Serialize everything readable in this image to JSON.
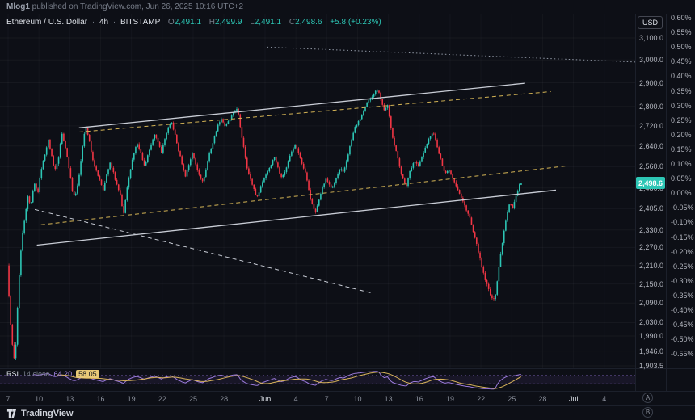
{
  "publisher": {
    "username": "Mlog1",
    "text": " published on TradingView.com, Jun 26, 2025 10:16 UTC+2"
  },
  "header": {
    "title": "Ethereum / U.S. Dollar",
    "separator": "·",
    "interval": "4h",
    "exchange": "BITSTAMP",
    "o_label": "O",
    "o": "2,491.1",
    "h_label": "H",
    "h": "2,499.9",
    "l_label": "L",
    "l": "2,491.1",
    "c_label": "C",
    "c": "2,498.6",
    "change": "+5.8 (+0.23%)"
  },
  "price_scale": {
    "currency_button": "USD",
    "current_price": 2498.6,
    "current_price_badge": "2,498.6",
    "labels": [
      {
        "price": 3100,
        "text": "3,100.0"
      },
      {
        "price": 3000,
        "text": "3,000.0"
      },
      {
        "price": 2900,
        "text": "2,900.0"
      },
      {
        "price": 2800,
        "text": "2,800.0"
      },
      {
        "price": 2720,
        "text": "2,720.0"
      },
      {
        "price": 2640,
        "text": "2,640.0"
      },
      {
        "price": 2560,
        "text": "2,560.0"
      },
      {
        "price": 2480,
        "text": "2,480.0"
      },
      {
        "price": 2405,
        "text": "2,405.0"
      },
      {
        "price": 2330,
        "text": "2,330.0"
      },
      {
        "price": 2270,
        "text": "2,270.0"
      },
      {
        "price": 2210,
        "text": "2,210.0"
      },
      {
        "price": 2150,
        "text": "2,150.0"
      },
      {
        "price": 2090,
        "text": "2,090.0"
      },
      {
        "price": 2030,
        "text": "2,030.0"
      },
      {
        "price": 1990,
        "text": "1,990.0"
      },
      {
        "price": 1946,
        "text": "1,946.0"
      },
      {
        "price": 1903.5,
        "text": "1,903.5"
      }
    ]
  },
  "percent_scale": {
    "labels": [
      "0.60%",
      "0.55%",
      "0.50%",
      "0.45%",
      "0.40%",
      "0.35%",
      "0.30%",
      "0.25%",
      "0.20%",
      "0.15%",
      "0.10%",
      "0.05%",
      "0.00%",
      "-0.05%",
      "-0.10%",
      "-0.15%",
      "-0.20%",
      "-0.25%",
      "-0.30%",
      "-0.35%",
      "-0.40%",
      "-0.45%",
      "-0.50%",
      "-0.55%"
    ]
  },
  "time_scale": {
    "labels": [
      {
        "text": "7",
        "day": 0
      },
      {
        "text": "10",
        "day": 3
      },
      {
        "text": "13",
        "day": 6
      },
      {
        "text": "16",
        "day": 9
      },
      {
        "text": "19",
        "day": 12
      },
      {
        "text": "22",
        "day": 15
      },
      {
        "text": "25",
        "day": 18
      },
      {
        "text": "28",
        "day": 21
      },
      {
        "text": "Jun",
        "day": 25,
        "month": true
      },
      {
        "text": "4",
        "day": 28
      },
      {
        "text": "7",
        "day": 31
      },
      {
        "text": "10",
        "day": 34
      },
      {
        "text": "13",
        "day": 37
      },
      {
        "text": "16",
        "day": 40
      },
      {
        "text": "19",
        "day": 43
      },
      {
        "text": "22",
        "day": 46
      },
      {
        "text": "25",
        "day": 49
      },
      {
        "text": "28",
        "day": 52
      },
      {
        "text": "Jul",
        "day": 55,
        "month": true
      },
      {
        "text": "4",
        "day": 58
      }
    ]
  },
  "rsi_pane": {
    "title": "RSI",
    "params": "14 close"
  },
  "markers": {
    "a": "A",
    "b": "B"
  },
  "footer": {
    "logo_text": "TradingView"
  },
  "colors": {
    "background": "#0d0f16",
    "up": "#2dc6b5",
    "down": "#f23645",
    "accent_teal": "#2dc6b5",
    "rsi_line": "#9c7bdc",
    "rsi_ma": "#d9b45b",
    "trendline_white": "#c9cdd6",
    "trendline_yellow": "#d4b455",
    "dotted_gray": "#8f96a3"
  },
  "chart_data": {
    "type": "candlestick",
    "title": "Ethereum / U.S. Dollar · 4h · BITSTAMP",
    "scale": "logarithmic",
    "interval_hours": 4,
    "x_unit": "days since May 7",
    "y_range": [
      1903.5,
      3100
    ],
    "last_candle": {
      "o": 2491.1,
      "h": 2499.9,
      "l": 2491.1,
      "c": 2498.6
    },
    "price_path": [
      [
        0.0,
        2210
      ],
      [
        0.25,
        2060
      ],
      [
        0.5,
        1962
      ],
      [
        0.75,
        1906
      ],
      [
        1.0,
        2075
      ],
      [
        1.25,
        2225
      ],
      [
        1.5,
        2318
      ],
      [
        1.75,
        2378
      ],
      [
        2.0,
        2448
      ],
      [
        2.3,
        2415
      ],
      [
        2.6,
        2498
      ],
      [
        3.0,
        2468
      ],
      [
        3.3,
        2548
      ],
      [
        3.6,
        2598
      ],
      [
        4.0,
        2662
      ],
      [
        4.3,
        2608
      ],
      [
        4.6,
        2542
      ],
      [
        5.0,
        2598
      ],
      [
        5.3,
        2692
      ],
      [
        5.6,
        2648
      ],
      [
        6.0,
        2558
      ],
      [
        6.3,
        2478
      ],
      [
        6.6,
        2442
      ],
      [
        7.0,
        2528
      ],
      [
        7.3,
        2628
      ],
      [
        7.6,
        2718
      ],
      [
        8.0,
        2658
      ],
      [
        8.3,
        2588
      ],
      [
        8.6,
        2552
      ],
      [
        9.0,
        2512
      ],
      [
        9.3,
        2468
      ],
      [
        9.6,
        2522
      ],
      [
        10.0,
        2572
      ],
      [
        10.3,
        2542
      ],
      [
        10.6,
        2498
      ],
      [
        11.0,
        2452
      ],
      [
        11.3,
        2378
      ],
      [
        11.6,
        2468
      ],
      [
        12.0,
        2548
      ],
      [
        12.3,
        2612
      ],
      [
        12.6,
        2652
      ],
      [
        13.0,
        2612
      ],
      [
        13.3,
        2558
      ],
      [
        13.6,
        2592
      ],
      [
        14.0,
        2642
      ],
      [
        14.3,
        2692
      ],
      [
        14.6,
        2658
      ],
      [
        15.0,
        2618
      ],
      [
        15.3,
        2662
      ],
      [
        15.6,
        2708
      ],
      [
        16.0,
        2732
      ],
      [
        16.3,
        2688
      ],
      [
        16.6,
        2632
      ],
      [
        17.0,
        2572
      ],
      [
        17.3,
        2522
      ],
      [
        17.6,
        2558
      ],
      [
        18.0,
        2612
      ],
      [
        18.3,
        2572
      ],
      [
        18.6,
        2538
      ],
      [
        19.0,
        2502
      ],
      [
        19.3,
        2542
      ],
      [
        19.6,
        2602
      ],
      [
        20.0,
        2652
      ],
      [
        20.4,
        2712
      ],
      [
        20.8,
        2752
      ],
      [
        21.2,
        2718
      ],
      [
        21.6,
        2742
      ],
      [
        22.0,
        2772
      ],
      [
        22.4,
        2796
      ],
      [
        22.7,
        2702
      ],
      [
        23.0,
        2638
      ],
      [
        23.3,
        2562
      ],
      [
        23.6,
        2518
      ],
      [
        24.0,
        2476
      ],
      [
        24.3,
        2442
      ],
      [
        24.6,
        2480
      ],
      [
        25.0,
        2518
      ],
      [
        25.5,
        2556
      ],
      [
        26.0,
        2598
      ],
      [
        26.3,
        2560
      ],
      [
        26.6,
        2522
      ],
      [
        27.0,
        2538
      ],
      [
        27.3,
        2576
      ],
      [
        27.6,
        2616
      ],
      [
        28.0,
        2646
      ],
      [
        28.3,
        2616
      ],
      [
        28.6,
        2578
      ],
      [
        29.0,
        2538
      ],
      [
        29.3,
        2480
      ],
      [
        29.6,
        2426
      ],
      [
        30.0,
        2390
      ],
      [
        30.3,
        2436
      ],
      [
        30.6,
        2476
      ],
      [
        31.0,
        2512
      ],
      [
        31.3,
        2496
      ],
      [
        31.6,
        2476
      ],
      [
        32.0,
        2516
      ],
      [
        32.4,
        2552
      ],
      [
        32.7,
        2536
      ],
      [
        33.0,
        2582
      ],
      [
        33.4,
        2648
      ],
      [
        33.8,
        2712
      ],
      [
        34.2,
        2738
      ],
      [
        34.6,
        2772
      ],
      [
        35.0,
        2812
      ],
      [
        35.4,
        2838
      ],
      [
        35.8,
        2862
      ],
      [
        36.1,
        2872
      ],
      [
        36.4,
        2818
      ],
      [
        36.7,
        2782
      ],
      [
        37.0,
        2802
      ],
      [
        37.3,
        2722
      ],
      [
        37.6,
        2652
      ],
      [
        38.0,
        2592
      ],
      [
        38.4,
        2522
      ],
      [
        38.8,
        2484
      ],
      [
        39.2,
        2548
      ],
      [
        39.6,
        2582
      ],
      [
        40.0,
        2562
      ],
      [
        40.4,
        2602
      ],
      [
        40.8,
        2648
      ],
      [
        41.2,
        2682
      ],
      [
        41.5,
        2692
      ],
      [
        41.8,
        2638
      ],
      [
        42.2,
        2582
      ],
      [
        42.6,
        2535
      ],
      [
        43.0,
        2548
      ],
      [
        43.4,
        2512
      ],
      [
        43.8,
        2478
      ],
      [
        44.2,
        2440
      ],
      [
        44.6,
        2408
      ],
      [
        45.0,
        2372
      ],
      [
        45.4,
        2312
      ],
      [
        45.8,
        2262
      ],
      [
        46.2,
        2198
      ],
      [
        46.6,
        2152
      ],
      [
        47.0,
        2118
      ],
      [
        47.4,
        2095
      ],
      [
        47.7,
        2168
      ],
      [
        48.0,
        2248
      ],
      [
        48.3,
        2318
      ],
      [
        48.6,
        2382
      ],
      [
        48.9,
        2428
      ],
      [
        49.2,
        2408
      ],
      [
        49.5,
        2452
      ],
      [
        49.9,
        2498.6
      ]
    ],
    "drawings": [
      {
        "name": "channel-top-line",
        "type": "trendline",
        "style": "solid",
        "color": "#c9cdd6",
        "width": 1.3,
        "from": [
          6.9,
          2712
        ],
        "to": [
          50.3,
          2898
        ]
      },
      {
        "name": "channel-bottom-line",
        "type": "trendline",
        "style": "solid",
        "color": "#c9cdd6",
        "width": 1.3,
        "from": [
          2.8,
          2278
        ],
        "to": [
          53.3,
          2472
        ]
      },
      {
        "name": "yellow-upper-dashed",
        "type": "trendline",
        "style": "dashed",
        "color": "#d4b455",
        "width": 1,
        "from": [
          6.9,
          2695
        ],
        "to": [
          52.8,
          2862
        ]
      },
      {
        "name": "yellow-mid-dashed",
        "type": "trendline",
        "style": "dashed",
        "color": "#d4b455",
        "width": 1,
        "from": [
          3.2,
          2348
        ],
        "to": [
          54.2,
          2562
        ]
      },
      {
        "name": "white-descending-dashed",
        "type": "trendline",
        "style": "dashed",
        "color": "#c9cdd6",
        "width": 1,
        "from": [
          2.6,
          2402
        ],
        "to": [
          35.3,
          2122
        ]
      },
      {
        "name": "top-dotted-line",
        "type": "trendline",
        "style": "dotted",
        "color": "#8f96a3",
        "width": 1,
        "from": [
          25.2,
          3058
        ],
        "to": [
          61.5,
          2990
        ]
      },
      {
        "name": "current-price-line",
        "type": "hline",
        "style": "dotted",
        "color": "#2dc6b5",
        "width": 1,
        "price": 2498.6
      }
    ],
    "rsi": {
      "period": 14,
      "source": "close",
      "value": "64.20",
      "ma_value": "58.05",
      "levels": [
        70,
        30
      ]
    }
  }
}
